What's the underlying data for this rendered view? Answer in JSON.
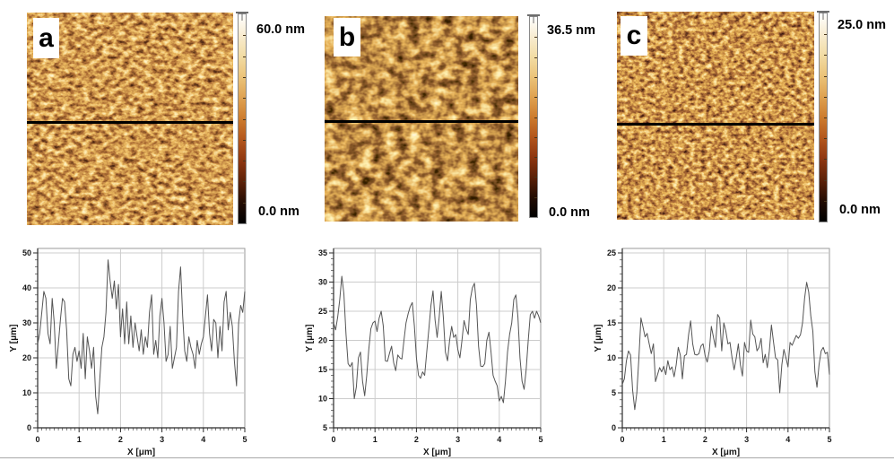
{
  "panels": [
    {
      "label": "a",
      "scale_max": "60.0 nm",
      "scale_min": "0.0 nm"
    },
    {
      "label": "b",
      "scale_max": "36.5 nm",
      "scale_min": "0.0 nm"
    },
    {
      "label": "c",
      "scale_max": "25.0 nm",
      "scale_min": "0.0 nm"
    }
  ],
  "colors": {
    "chart_trace": "#555555",
    "chart_grid": "#cccccc",
    "chart_border": "#9a9a9a",
    "chart_axis": "#2b2b2b",
    "profile_line": "#000000",
    "afm_palette": [
      "#000000",
      "#501c06",
      "#a34b15",
      "#e09a45",
      "#f3dfae",
      "#ffffff"
    ],
    "scalebar_stops": [
      "#ffffff",
      "#f8ecd0",
      "#f2dca4",
      "#ebc379",
      "#dfa251",
      "#cd7c2e",
      "#b3561c",
      "#8e3610",
      "#5c2108",
      "#230c02",
      "#000000"
    ]
  },
  "chart_data": [
    {
      "type": "line",
      "title": "",
      "xlabel": "X [μm]",
      "ylabel": "Y [μm]",
      "xlim": [
        0,
        5
      ],
      "ylim": [
        0,
        50
      ],
      "xticks": [
        0,
        1,
        2,
        3,
        4,
        5
      ],
      "yticks": [
        0,
        10,
        20,
        30,
        40,
        50
      ],
      "grid": true,
      "legend": false,
      "x": [
        0,
        0.05,
        0.1,
        0.15,
        0.2,
        0.25,
        0.3,
        0.35,
        0.4,
        0.45,
        0.5,
        0.55,
        0.6,
        0.65,
        0.7,
        0.75,
        0.8,
        0.85,
        0.9,
        0.95,
        1,
        1.05,
        1.1,
        1.15,
        1.2,
        1.25,
        1.3,
        1.35,
        1.4,
        1.45,
        1.5,
        1.55,
        1.6,
        1.65,
        1.7,
        1.75,
        1.8,
        1.85,
        1.9,
        1.95,
        2,
        2.05,
        2.1,
        2.15,
        2.2,
        2.25,
        2.3,
        2.35,
        2.4,
        2.45,
        2.5,
        2.55,
        2.6,
        2.65,
        2.7,
        2.75,
        2.8,
        2.85,
        2.9,
        2.95,
        3,
        3.05,
        3.1,
        3.15,
        3.2,
        3.25,
        3.3,
        3.35,
        3.4,
        3.45,
        3.5,
        3.55,
        3.6,
        3.65,
        3.7,
        3.75,
        3.8,
        3.85,
        3.9,
        3.95,
        4,
        4.05,
        4.1,
        4.15,
        4.2,
        4.25,
        4.3,
        4.35,
        4.4,
        4.45,
        4.5,
        4.55,
        4.6,
        4.65,
        4.7,
        4.75,
        4.8,
        4.85,
        4.9,
        4.95,
        5
      ],
      "y": [
        24,
        27,
        33,
        39,
        37,
        27,
        24,
        37,
        30,
        17,
        24,
        31,
        37,
        36,
        28,
        14,
        12,
        21,
        23,
        19,
        22,
        17,
        27,
        14,
        26,
        22,
        17,
        23,
        9,
        4,
        14,
        23,
        26,
        33,
        48,
        42,
        37,
        42,
        34,
        41,
        26,
        34,
        24,
        36,
        24,
        32,
        23,
        30,
        26,
        22,
        28,
        21,
        26,
        23,
        33,
        38,
        21,
        25,
        20,
        32,
        37,
        30,
        19,
        21,
        29,
        17,
        20,
        23,
        39,
        46,
        32,
        22,
        19,
        26,
        23,
        21,
        17,
        25,
        21,
        24,
        26,
        32,
        38,
        27,
        22,
        31,
        30,
        20,
        29,
        22,
        36,
        39,
        28,
        33,
        29,
        19,
        12,
        30,
        35,
        33,
        39
      ]
    },
    {
      "type": "line",
      "title": "",
      "xlabel": "X [μm]",
      "ylabel": "Y [μm]",
      "xlim": [
        0,
        5
      ],
      "ylim": [
        5,
        35
      ],
      "xticks": [
        0,
        1,
        2,
        3,
        4,
        5
      ],
      "yticks": [
        5,
        10,
        15,
        20,
        25,
        30,
        35
      ],
      "grid": true,
      "legend": false,
      "x": [
        0,
        0.05,
        0.1,
        0.15,
        0.2,
        0.25,
        0.3,
        0.35,
        0.4,
        0.45,
        0.5,
        0.55,
        0.6,
        0.65,
        0.7,
        0.75,
        0.8,
        0.85,
        0.9,
        0.95,
        1,
        1.05,
        1.1,
        1.15,
        1.2,
        1.25,
        1.3,
        1.35,
        1.4,
        1.45,
        1.5,
        1.55,
        1.6,
        1.65,
        1.7,
        1.75,
        1.8,
        1.85,
        1.9,
        1.95,
        2,
        2.05,
        2.1,
        2.15,
        2.2,
        2.25,
        2.3,
        2.35,
        2.4,
        2.45,
        2.5,
        2.55,
        2.6,
        2.65,
        2.7,
        2.75,
        2.8,
        2.85,
        2.9,
        2.95,
        3,
        3.05,
        3.1,
        3.15,
        3.2,
        3.25,
        3.3,
        3.35,
        3.4,
        3.45,
        3.5,
        3.55,
        3.6,
        3.65,
        3.7,
        3.75,
        3.8,
        3.85,
        3.9,
        3.95,
        4,
        4.05,
        4.1,
        4.15,
        4.2,
        4.25,
        4.3,
        4.35,
        4.4,
        4.45,
        4.5,
        4.55,
        4.6,
        4.65,
        4.7,
        4.75,
        4.8,
        4.85,
        4.9,
        4.95,
        5
      ],
      "y": [
        23,
        21.8,
        24,
        27,
        31,
        28,
        21,
        16,
        15.5,
        16.2,
        10,
        12,
        17,
        18,
        13,
        10.5,
        14,
        18.5,
        22,
        23,
        23.3,
        21.5,
        23.8,
        25,
        22.5,
        16.5,
        16.4,
        17.8,
        19,
        16.2,
        14.8,
        17.5,
        17,
        16.8,
        20,
        23,
        24.6,
        25.8,
        26.5,
        22.5,
        17,
        14,
        13.5,
        14.6,
        14,
        18,
        22,
        26,
        28.5,
        23.5,
        20.5,
        24,
        28.4,
        24,
        18,
        16.5,
        20,
        22.4,
        20.5,
        21,
        18.4,
        17,
        20,
        23.4,
        22,
        21,
        27,
        29,
        29.8,
        26,
        19,
        15.6,
        15.5,
        16,
        20,
        21.4,
        18,
        14,
        13,
        12.2,
        9.6,
        10.4,
        9.3,
        13,
        18,
        21,
        23,
        27,
        27.8,
        24,
        17,
        13,
        11.6,
        15,
        20,
        24.4,
        25,
        23.8,
        25,
        24.2,
        23
      ]
    },
    {
      "type": "line",
      "title": "",
      "xlabel": "X [μm]",
      "ylabel": "Y [μm]",
      "xlim": [
        0,
        5
      ],
      "ylim": [
        0,
        25
      ],
      "xticks": [
        0,
        1,
        2,
        3,
        4,
        5
      ],
      "yticks": [
        0,
        5,
        10,
        15,
        20,
        25
      ],
      "grid": true,
      "legend": false,
      "x": [
        0,
        0.05,
        0.1,
        0.15,
        0.2,
        0.25,
        0.3,
        0.35,
        0.4,
        0.45,
        0.5,
        0.55,
        0.6,
        0.65,
        0.7,
        0.75,
        0.8,
        0.85,
        0.9,
        0.95,
        1,
        1.05,
        1.1,
        1.15,
        1.2,
        1.25,
        1.3,
        1.35,
        1.4,
        1.45,
        1.5,
        1.55,
        1.6,
        1.65,
        1.7,
        1.75,
        1.8,
        1.85,
        1.9,
        1.95,
        2,
        2.05,
        2.1,
        2.15,
        2.2,
        2.25,
        2.3,
        2.35,
        2.4,
        2.45,
        2.5,
        2.55,
        2.6,
        2.65,
        2.7,
        2.75,
        2.8,
        2.85,
        2.9,
        2.95,
        3,
        3.05,
        3.1,
        3.15,
        3.2,
        3.25,
        3.3,
        3.35,
        3.4,
        3.45,
        3.5,
        3.55,
        3.6,
        3.65,
        3.7,
        3.75,
        3.8,
        3.85,
        3.9,
        3.95,
        4,
        4.05,
        4.1,
        4.15,
        4.2,
        4.25,
        4.3,
        4.35,
        4.4,
        4.45,
        4.5,
        4.55,
        4.6,
        4.65,
        4.7,
        4.75,
        4.8,
        4.85,
        4.9,
        4.95,
        5
      ],
      "y": [
        6.2,
        7,
        9.6,
        11,
        10.4,
        5.4,
        2.6,
        5,
        10,
        15.7,
        14.4,
        13,
        13.5,
        12,
        10.6,
        12,
        6.6,
        7.6,
        8.6,
        8,
        8.8,
        7.6,
        9.6,
        8.3,
        8.7,
        7.3,
        9,
        11.5,
        10.4,
        7,
        10.3,
        10.5,
        13.3,
        15.3,
        12,
        10.5,
        10.4,
        10.6,
        11.7,
        12,
        10.3,
        9.4,
        11,
        14.5,
        13,
        11.5,
        16.2,
        15.7,
        11,
        15,
        13.8,
        12,
        12.2,
        10,
        8.3,
        10,
        12,
        9,
        7.4,
        12.2,
        11,
        10.8,
        15.4,
        13.4,
        13,
        11,
        11.5,
        12.8,
        9.3,
        10.5,
        8.6,
        11,
        14.7,
        12.3,
        10,
        9.7,
        5,
        9,
        11.2,
        10,
        8.7,
        12.2,
        11.8,
        12.5,
        13.2,
        12.8,
        13.3,
        15,
        18.5,
        20.8,
        19.4,
        16,
        13.8,
        8,
        5.8,
        9,
        11,
        11.5,
        10.6,
        10.8,
        7.6
      ]
    }
  ]
}
